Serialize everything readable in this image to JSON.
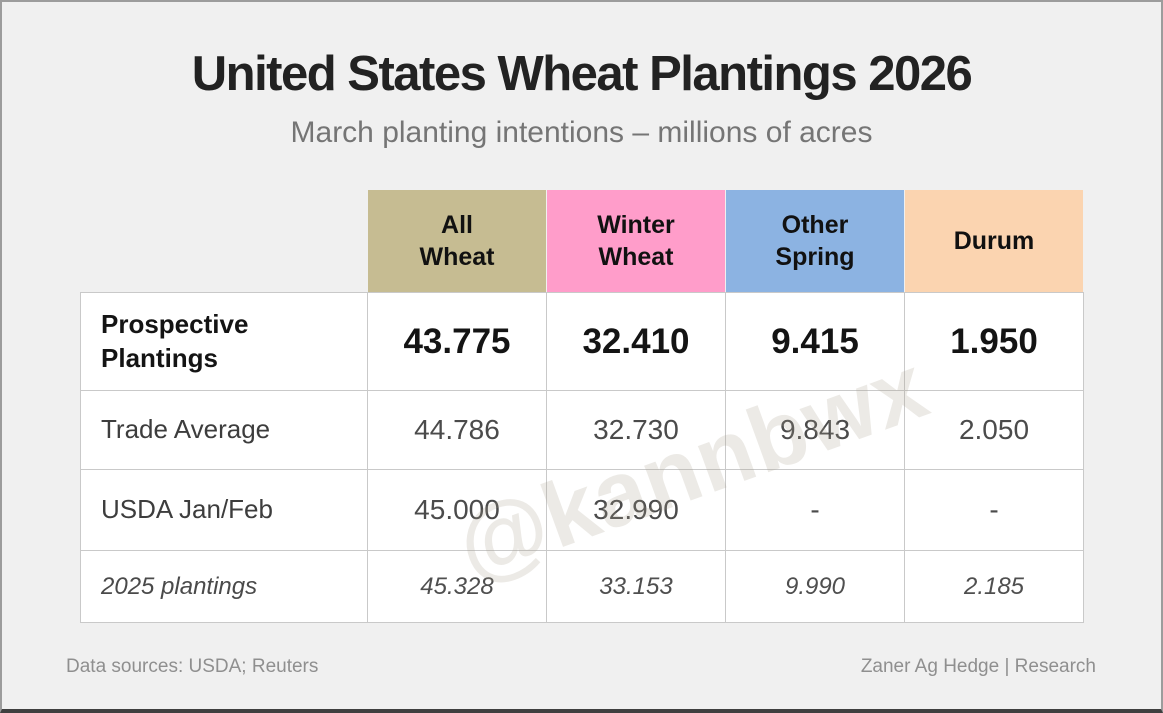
{
  "header": {
    "title": "United States Wheat Plantings 2026",
    "subtitle": "March planting intentions – millions of acres"
  },
  "table": {
    "columns": [
      {
        "label": "All\nWheat",
        "color": "#c6bc92"
      },
      {
        "label": "Winter\nWheat",
        "color": "#ff9dca"
      },
      {
        "label": "Other\nSpring",
        "color": "#8cb3e2"
      },
      {
        "label": "Durum",
        "color": "#fbd4b0"
      }
    ],
    "rows": [
      {
        "label": "Prospective\nPlantings",
        "style": "bold",
        "values": [
          "43.775",
          "32.410",
          "9.415",
          "1.950"
        ]
      },
      {
        "label": "Trade Average",
        "style": "regular",
        "values": [
          "44.786",
          "32.730",
          "9.843",
          "2.050"
        ]
      },
      {
        "label": "USDA Jan/Feb",
        "style": "regular",
        "values": [
          "45.000",
          "32.990",
          "-",
          "-"
        ]
      },
      {
        "label": "2025 plantings",
        "style": "italic",
        "values": [
          "45.328",
          "33.153",
          "9.990",
          "2.185"
        ]
      }
    ]
  },
  "chart_data": {
    "type": "table",
    "title": "United States Wheat Plantings 2026",
    "subtitle": "March planting intentions – millions of acres",
    "unit": "millions of acres",
    "columns": [
      "All Wheat",
      "Winter Wheat",
      "Other Spring",
      "Durum"
    ],
    "rows": [
      {
        "label": "Prospective Plantings",
        "values": [
          43.775,
          32.41,
          9.415,
          1.95
        ]
      },
      {
        "label": "Trade Average",
        "values": [
          44.786,
          32.73,
          9.843,
          2.05
        ]
      },
      {
        "label": "USDA Jan/Feb",
        "values": [
          45.0,
          32.99,
          null,
          null
        ]
      },
      {
        "label": "2025 plantings",
        "values": [
          45.328,
          33.153,
          9.99,
          2.185
        ]
      }
    ]
  },
  "watermark": "@kannbwx",
  "footer": {
    "left": "Data sources: USDA; Reuters",
    "right": "Zaner Ag Hedge | Research"
  }
}
